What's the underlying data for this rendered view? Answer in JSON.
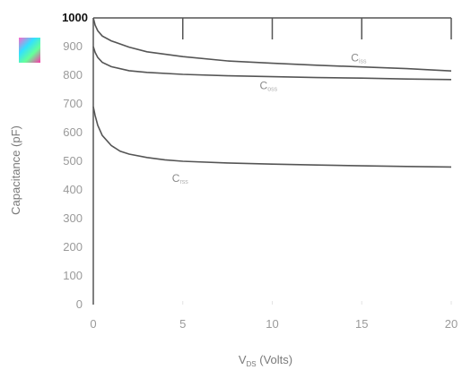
{
  "chart_data": {
    "type": "line",
    "xlabel": "V",
    "xlabel_sub": "DS",
    "xlabel_suffix": " (Volts)",
    "ylabel": "Capacitance (pF)",
    "xlim": [
      0,
      20
    ],
    "ylim": [
      0,
      1000
    ],
    "x_ticks": [
      "0",
      "5",
      "10",
      "15",
      "20"
    ],
    "y_ticks": [
      "0",
      "100",
      "200",
      "300",
      "400",
      "500",
      "600",
      "700",
      "800",
      "900",
      "1000"
    ],
    "grid": false,
    "series": [
      {
        "name": "C",
        "sub": "iss",
        "x": [
          0,
          0.1,
          0.25,
          0.5,
          1,
          2,
          3,
          5,
          7.5,
          10,
          12.5,
          15,
          17.5,
          20
        ],
        "y": [
          1000,
          975,
          955,
          937,
          920,
          898,
          882,
          865,
          850,
          842,
          835,
          829,
          823,
          815
        ]
      },
      {
        "name": "C",
        "sub": "oss",
        "x": [
          0,
          0.1,
          0.25,
          0.5,
          1,
          2,
          3,
          5,
          7.5,
          10,
          12.5,
          15,
          17.5,
          20
        ],
        "y": [
          900,
          880,
          862,
          845,
          830,
          816,
          810,
          803,
          798,
          795,
          792,
          790,
          787,
          785
        ]
      },
      {
        "name": "C",
        "sub": "rss",
        "x": [
          0,
          0.1,
          0.25,
          0.5,
          1,
          1.5,
          2,
          3,
          4,
          5,
          7.5,
          10,
          12.5,
          15,
          17.5,
          20
        ],
        "y": [
          690,
          660,
          625,
          590,
          555,
          535,
          525,
          513,
          505,
          500,
          494,
          490,
          487,
          484,
          482,
          480
        ]
      }
    ],
    "colors": {
      "curve": "#555555",
      "axis": "#555555"
    }
  }
}
